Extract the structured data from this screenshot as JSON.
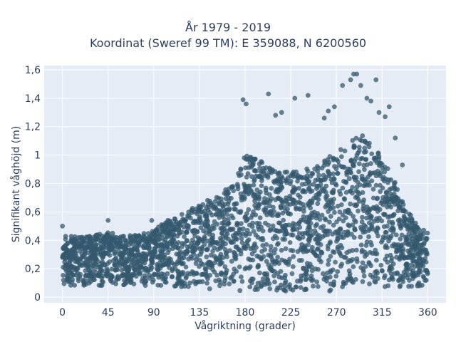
{
  "chart_data": {
    "type": "scatter",
    "title_lines": [
      "År 1979 - 2019",
      "Koordinat (Sweref 99 TM): E 359088, N 6200560"
    ],
    "xlabel": "Vågriktning (grader)",
    "ylabel": "Signifikant våghöjd (m)",
    "xlim": [
      -18,
      378
    ],
    "ylim": [
      -0.04,
      1.63
    ],
    "x_ticks": [
      0,
      45,
      90,
      135,
      180,
      225,
      270,
      315,
      360
    ],
    "x_tick_labels": [
      "0",
      "45",
      "90",
      "135",
      "180",
      "225",
      "270",
      "315",
      "360"
    ],
    "y_ticks": [
      0,
      0.2,
      0.4,
      0.6,
      0.8,
      1.0,
      1.2,
      1.4,
      1.6
    ],
    "y_tick_labels": [
      "0",
      "0,2",
      "0,4",
      "0,6",
      "0,8",
      "1",
      "1,2",
      "1,4",
      "1,6"
    ],
    "grid": true,
    "marker_color": "#34586e",
    "plot_bg": "#e5ecf6",
    "upper_envelope": [
      [
        0,
        0.45
      ],
      [
        15,
        0.42
      ],
      [
        30,
        0.44
      ],
      [
        45,
        0.46
      ],
      [
        60,
        0.43
      ],
      [
        75,
        0.44
      ],
      [
        90,
        0.47
      ],
      [
        105,
        0.55
      ],
      [
        120,
        0.6
      ],
      [
        135,
        0.66
      ],
      [
        150,
        0.7
      ],
      [
        165,
        0.78
      ],
      [
        172,
        0.88
      ],
      [
        180,
        1.0
      ],
      [
        195,
        0.96
      ],
      [
        210,
        0.9
      ],
      [
        225,
        0.88
      ],
      [
        240,
        0.9
      ],
      [
        255,
        0.95
      ],
      [
        270,
        1.02
      ],
      [
        285,
        1.1
      ],
      [
        295,
        1.15
      ],
      [
        305,
        1.08
      ],
      [
        315,
        0.98
      ],
      [
        330,
        0.78
      ],
      [
        340,
        0.62
      ],
      [
        350,
        0.5
      ],
      [
        360,
        0.47
      ]
    ],
    "lower_envelope": [
      [
        0,
        0.08
      ],
      [
        90,
        0.08
      ],
      [
        150,
        0.05
      ],
      [
        180,
        0.04
      ],
      [
        270,
        0.04
      ],
      [
        330,
        0.06
      ],
      [
        360,
        0.08
      ]
    ],
    "outliers": [
      {
        "x": 0,
        "y": 0.5
      },
      {
        "x": 45,
        "y": 0.54
      },
      {
        "x": 88,
        "y": 0.54
      },
      {
        "x": 178,
        "y": 1.39
      },
      {
        "x": 181,
        "y": 1.36
      },
      {
        "x": 203,
        "y": 1.43
      },
      {
        "x": 210,
        "y": 1.28
      },
      {
        "x": 216,
        "y": 1.3
      },
      {
        "x": 229,
        "y": 1.4
      },
      {
        "x": 242,
        "y": 1.42
      },
      {
        "x": 258,
        "y": 1.26
      },
      {
        "x": 262,
        "y": 1.31
      },
      {
        "x": 268,
        "y": 1.34
      },
      {
        "x": 276,
        "y": 1.49
      },
      {
        "x": 284,
        "y": 1.53
      },
      {
        "x": 287,
        "y": 1.57
      },
      {
        "x": 290,
        "y": 1.57
      },
      {
        "x": 294,
        "y": 1.49
      },
      {
        "x": 300,
        "y": 1.4
      },
      {
        "x": 304,
        "y": 1.38
      },
      {
        "x": 309,
        "y": 1.53
      },
      {
        "x": 312,
        "y": 1.3
      },
      {
        "x": 318,
        "y": 1.27
      },
      {
        "x": 322,
        "y": 1.34
      },
      {
        "x": 328,
        "y": 1.12
      },
      {
        "x": 335,
        "y": 0.93
      }
    ]
  }
}
